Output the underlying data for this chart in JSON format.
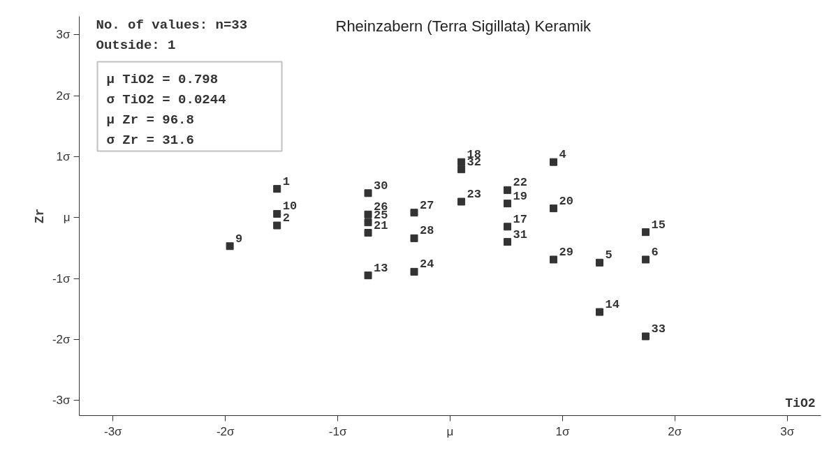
{
  "chart_data": {
    "type": "scatter",
    "title": "Rheinzabern (Terra Sigillata) Keramik",
    "xlabel": "TiO2",
    "ylabel": "Zr",
    "x": [
      -1.96,
      -1.54,
      -1.54,
      -1.54,
      -0.73,
      -0.73,
      -0.73,
      -0.73,
      -0.73,
      -0.32,
      -0.32,
      -0.32,
      0.1,
      0.1,
      0.1,
      0.92,
      0.51,
      0.51,
      0.51,
      0.51,
      0.92,
      0.92,
      1.33,
      1.74,
      1.74,
      1.33,
      1.74
    ],
    "series": [
      {
        "color": "#333333",
        "values": [
          -0.47,
          0.47,
          0.06,
          -0.13,
          0.4,
          0.05,
          -0.08,
          -0.25,
          -0.95,
          0.08,
          -0.34,
          -0.89,
          0.91,
          0.79,
          0.26,
          0.91,
          0.45,
          0.23,
          -0.15,
          -0.4,
          0.15,
          -0.69,
          -0.74,
          -0.24,
          -0.69,
          -1.55,
          -1.95
        ]
      }
    ],
    "marker": "square",
    "grid": false,
    "xlim": [
      -3.3,
      3.3
    ],
    "ylim": [
      -3.25,
      3.3
    ],
    "xticks": [
      {
        "value": -3,
        "label": "-3σ"
      },
      {
        "value": -2,
        "label": "-2σ"
      },
      {
        "value": -1,
        "label": "-1σ"
      },
      {
        "value": 0,
        "label": "μ"
      },
      {
        "value": 1,
        "label": "1σ"
      },
      {
        "value": 2,
        "label": "2σ"
      },
      {
        "value": 3,
        "label": "3σ"
      }
    ],
    "yticks": [
      {
        "value": -3,
        "label": "-3σ"
      },
      {
        "value": -2,
        "label": "-2σ"
      },
      {
        "value": -1,
        "label": "-1σ"
      },
      {
        "value": 0,
        "label": "μ"
      },
      {
        "value": 1,
        "label": "1σ"
      },
      {
        "value": 2,
        "label": "2σ"
      },
      {
        "value": 3,
        "label": "3σ"
      }
    ],
    "annotations": [
      "No. of values: n=33",
      "Outside: 1",
      "μ TiO2 = 0.798",
      "σ TiO2 = 0.0244",
      "μ Zr = 96.8",
      "σ Zr = 31.6",
      {
        "text": "9",
        "x": -1.96,
        "y": -0.47
      },
      {
        "text": "1",
        "x": -1.54,
        "y": 0.47
      },
      {
        "text": "10",
        "x": -1.54,
        "y": 0.06
      },
      {
        "text": "2",
        "x": -1.54,
        "y": -0.13
      },
      {
        "text": "30",
        "x": -0.73,
        "y": 0.4
      },
      {
        "text": "26",
        "x": -0.73,
        "y": 0.05
      },
      {
        "text": "25",
        "x": -0.73,
        "y": -0.08
      },
      {
        "text": "21",
        "x": -0.73,
        "y": -0.25
      },
      {
        "text": "13",
        "x": -0.73,
        "y": -0.95
      },
      {
        "text": "27",
        "x": -0.32,
        "y": 0.08
      },
      {
        "text": "28",
        "x": -0.32,
        "y": -0.34
      },
      {
        "text": "24",
        "x": -0.32,
        "y": -0.89
      },
      {
        "text": "18",
        "x": 0.1,
        "y": 0.91
      },
      {
        "text": "32",
        "x": 0.1,
        "y": 0.79
      },
      {
        "text": "23",
        "x": 0.1,
        "y": 0.26
      },
      {
        "text": "4",
        "x": 0.92,
        "y": 0.91
      },
      {
        "text": "22",
        "x": 0.51,
        "y": 0.45
      },
      {
        "text": "19",
        "x": 0.51,
        "y": 0.23
      },
      {
        "text": "17",
        "x": 0.51,
        "y": -0.15
      },
      {
        "text": "31",
        "x": 0.51,
        "y": -0.4
      },
      {
        "text": "20",
        "x": 0.92,
        "y": 0.15
      },
      {
        "text": "29",
        "x": 0.92,
        "y": -0.69
      },
      {
        "text": "5",
        "x": 1.33,
        "y": -0.74
      },
      {
        "text": "15",
        "x": 1.74,
        "y": -0.24
      },
      {
        "text": "6",
        "x": 1.74,
        "y": -0.69
      },
      {
        "text": "14",
        "x": 1.33,
        "y": -1.55
      },
      {
        "text": "33",
        "x": 1.74,
        "y": -1.95
      }
    ]
  }
}
